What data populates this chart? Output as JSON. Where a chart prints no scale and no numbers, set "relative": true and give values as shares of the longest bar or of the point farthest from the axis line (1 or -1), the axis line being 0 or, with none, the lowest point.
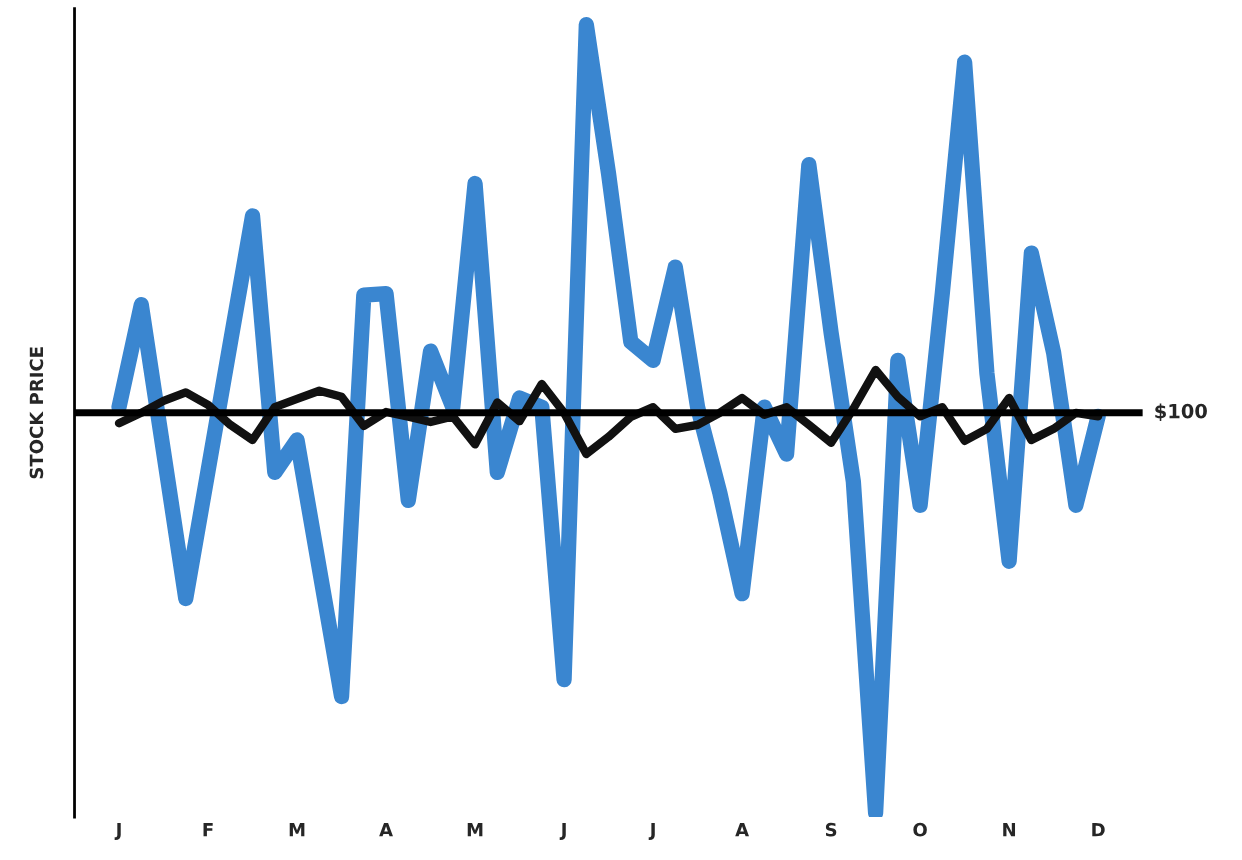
{
  "chart_data": {
    "type": "line",
    "ylabel": "STOCK PRICE",
    "relative": true,
    "grid": false,
    "legend": false,
    "marker": "none",
    "line_style": "solid",
    "categories": [
      "J",
      null,
      null,
      null,
      "F",
      null,
      null,
      null,
      "M",
      null,
      null,
      null,
      "A",
      null,
      null,
      null,
      "M",
      null,
      null,
      null,
      "J",
      null,
      null,
      null,
      "J",
      null,
      null,
      null,
      "A",
      null,
      null,
      null,
      "S",
      null,
      null,
      null,
      "O",
      null,
      null,
      null,
      "N",
      null,
      null,
      null,
      "D"
    ],
    "ref_lines": [
      {
        "axis": "y",
        "value": 0,
        "color": "#000000"
      }
    ],
    "annotations": [
      "$100"
    ],
    "series": [
      {
        "color": "#3a86d0",
        "values": [
          0.014,
          0.27,
          -0.097,
          -0.464,
          -0.145,
          0.174,
          0.492,
          -0.149,
          -0.068,
          -0.389,
          -0.709,
          0.294,
          0.298,
          -0.219,
          0.154,
          0.014,
          0.573,
          -0.149,
          0.037,
          0.014,
          -0.667,
          0.97,
          0.597,
          0.177,
          0.131,
          0.364,
          0.014,
          -0.2,
          -0.452,
          0.014,
          -0.103,
          0.62,
          0.2,
          -0.172,
          -1.0,
          0.131,
          -0.231,
          0.3,
          0.876,
          0.1,
          -0.371,
          0.399,
          0.15,
          -0.231,
          -0.009
        ]
      },
      {
        "color": "#111111",
        "values": [
          -0.026,
          0.0,
          0.03,
          0.051,
          0.02,
          -0.03,
          -0.068,
          0.014,
          0.035,
          0.055,
          0.04,
          -0.033,
          0.002,
          -0.01,
          -0.023,
          -0.009,
          -0.079,
          0.026,
          -0.021,
          0.072,
          0.0,
          -0.103,
          -0.06,
          -0.01,
          0.014,
          -0.04,
          -0.03,
          0.0,
          0.037,
          -0.005,
          0.014,
          -0.03,
          -0.075,
          0.01,
          0.107,
          0.04,
          -0.009,
          0.014,
          -0.07,
          -0.04,
          0.037,
          -0.068,
          -0.04,
          0.0,
          -0.009
        ]
      }
    ]
  }
}
